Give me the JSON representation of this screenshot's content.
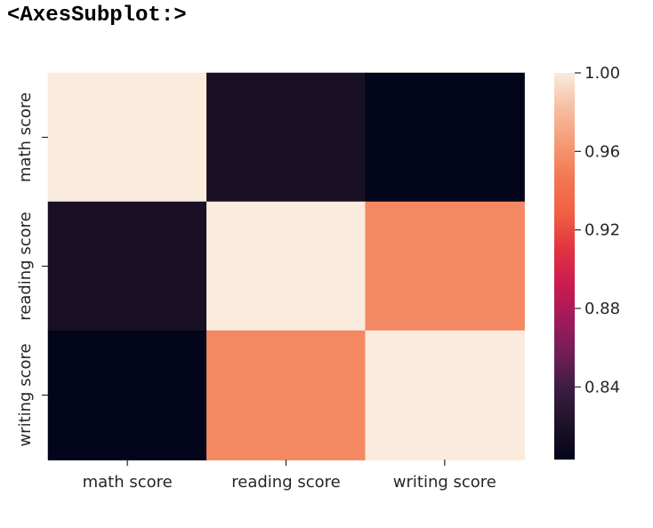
{
  "output_label": "<AxesSubplot:>",
  "chart_data": {
    "type": "heatmap",
    "title": "",
    "xlabel": "",
    "ylabel": "",
    "x_categories": [
      "math score",
      "reading score",
      "writing score"
    ],
    "y_categories": [
      "math score",
      "reading score",
      "writing score"
    ],
    "values": [
      [
        1.0,
        0.818,
        0.803
      ],
      [
        0.818,
        1.0,
        0.955
      ],
      [
        0.803,
        0.955,
        1.0
      ]
    ],
    "colormap": "rocket",
    "colorbar": {
      "vmin": 0.803,
      "vmax": 1.0,
      "ticks": [
        0.84,
        0.88,
        0.92,
        0.96,
        1.0
      ],
      "tick_labels": [
        "0.84",
        "0.88",
        "0.92",
        "0.96",
        "1.00"
      ]
    },
    "grid": false,
    "colors": {
      "colormap_stops": [
        "#03051a",
        "#1d1228",
        "#3b1c43",
        "#701f57",
        "#a11a5b",
        "#cb1b4f",
        "#e13342",
        "#f06043",
        "#f37651",
        "#f59b76",
        "#f6bea1",
        "#faebdd"
      ],
      "tick_and_text": "#262626"
    }
  }
}
